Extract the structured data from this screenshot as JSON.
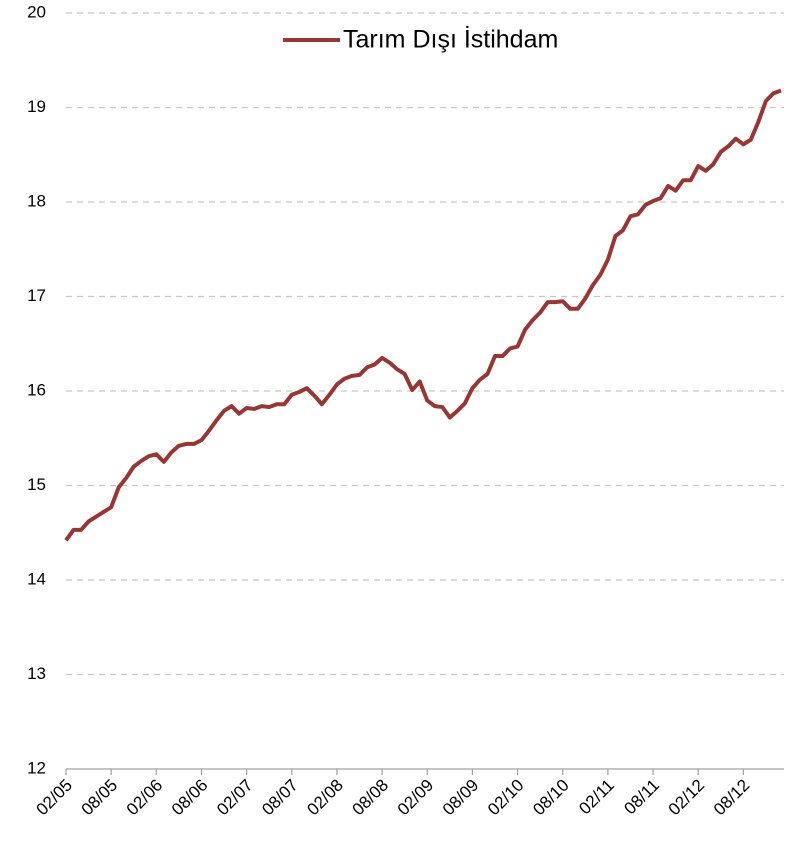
{
  "chart_data": {
    "type": "line",
    "categories": [
      "02/05",
      null,
      null,
      null,
      null,
      null,
      "08/05",
      null,
      null,
      null,
      null,
      null,
      "02/06",
      null,
      null,
      null,
      null,
      null,
      "08/06",
      null,
      null,
      null,
      null,
      null,
      "02/07",
      null,
      null,
      null,
      null,
      null,
      "08/07",
      null,
      null,
      null,
      null,
      null,
      "02/08",
      null,
      null,
      null,
      null,
      null,
      "08/08",
      null,
      null,
      null,
      null,
      null,
      "02/09",
      null,
      null,
      null,
      null,
      null,
      "08/09",
      null,
      null,
      null,
      null,
      null,
      "02/10",
      null,
      null,
      null,
      null,
      null,
      "08/10",
      null,
      null,
      null,
      null,
      null,
      "02/11",
      null,
      null,
      null,
      null,
      null,
      "08/11",
      null,
      null,
      null,
      null,
      null,
      "02/12",
      null,
      null,
      null,
      null,
      null,
      "08/12",
      null,
      null,
      null,
      null,
      null
    ],
    "series": [
      {
        "name": "Tarım Dışı İstihdam",
        "color": "#953735",
        "values": [
          14.42,
          14.53,
          14.53,
          14.62,
          14.67,
          14.72,
          14.77,
          14.98,
          15.08,
          15.2,
          15.26,
          15.31,
          15.33,
          15.25,
          15.35,
          15.42,
          15.44,
          15.44,
          15.48,
          15.58,
          15.69,
          15.79,
          15.84,
          15.76,
          15.82,
          15.81,
          15.84,
          15.83,
          15.86,
          15.86,
          15.96,
          15.99,
          16.03,
          15.95,
          15.86,
          15.96,
          16.07,
          16.13,
          16.16,
          16.17,
          16.25,
          16.28,
          16.35,
          16.3,
          16.23,
          16.18,
          16.01,
          16.1,
          15.9,
          15.84,
          15.83,
          15.72,
          15.79,
          15.87,
          16.03,
          16.12,
          16.18,
          16.37,
          16.37,
          16.45,
          16.47,
          16.65,
          16.75,
          16.83,
          16.94,
          16.94,
          16.95,
          16.87,
          16.87,
          16.98,
          17.12,
          17.23,
          17.39,
          17.64,
          17.7,
          17.85,
          17.87,
          17.97,
          18.01,
          18.04,
          18.17,
          18.12,
          18.23,
          18.23,
          18.38,
          18.33,
          18.4,
          18.53,
          18.59,
          18.67,
          18.61,
          18.66,
          18.85,
          19.07,
          19.15,
          19.18
        ]
      }
    ],
    "ylim": [
      12,
      20
    ],
    "yticks": [
      12,
      13,
      14,
      15,
      16,
      17,
      18,
      19,
      20
    ],
    "grid": true,
    "legend": "top"
  }
}
